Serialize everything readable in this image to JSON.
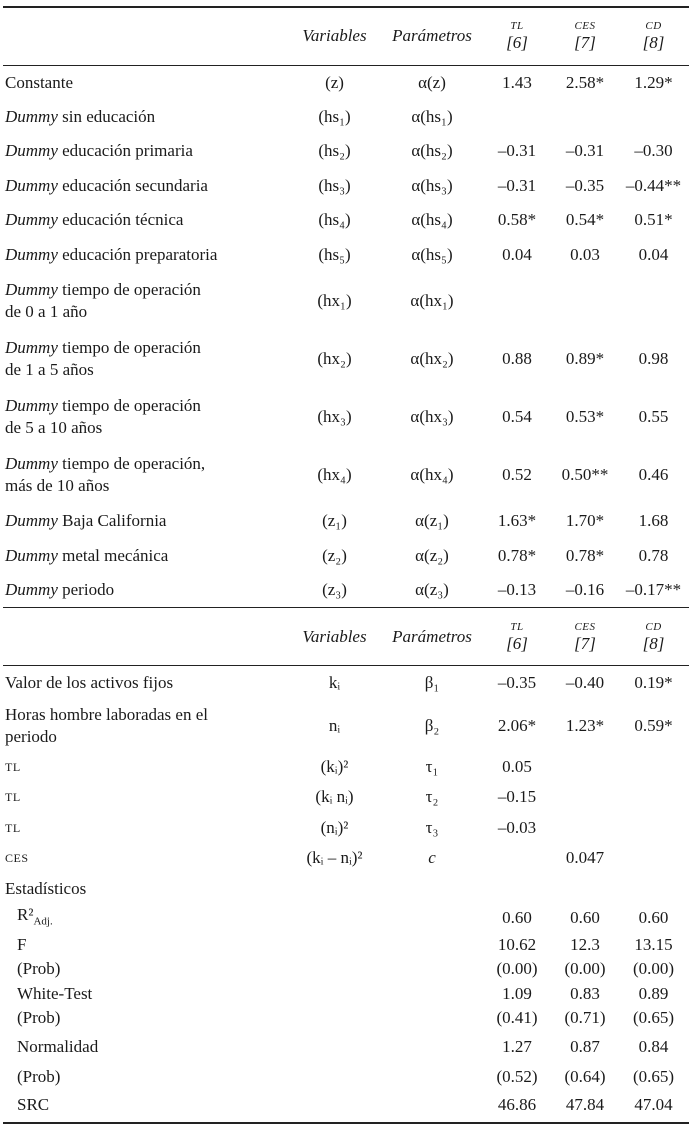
{
  "header": {
    "variables": "Variables",
    "parametros": "Parámetros",
    "models": [
      {
        "name": "TL",
        "num": "[6]"
      },
      {
        "name": "CES",
        "num": "[7]"
      },
      {
        "name": "CD",
        "num": "[8]"
      }
    ]
  },
  "section1": [
    {
      "it": "",
      "label": "Constante",
      "var": "(z)",
      "par": "α(z)",
      "tl": "1.43",
      "ces": "2.58*",
      "cd": "1.29*"
    },
    {
      "it": "Dummy",
      "label": " sin educación",
      "var": "(hs₁)",
      "par": "α(hs₁)",
      "tl": "",
      "ces": "",
      "cd": ""
    },
    {
      "it": "Dummy",
      "label": " educación primaria",
      "var": "(hs₂)",
      "par": "α(hs₂)",
      "tl": "–0.31",
      "ces": "–0.31",
      "cd": "–0.30"
    },
    {
      "it": "Dummy",
      "label": " educación secundaria",
      "var": "(hs₃)",
      "par": "α(hs₃)",
      "tl": "–0.31",
      "ces": "–0.35",
      "cd": "–0.44**"
    },
    {
      "it": "Dummy",
      "label": " educación técnica",
      "var": "(hs₄)",
      "par": "α(hs₄)",
      "tl": "0.58*",
      "ces": "0.54*",
      "cd": "0.51*"
    },
    {
      "it": "Dummy",
      "label": " educación preparatoria",
      "var": "(hs₅)",
      "par": "α(hs₅)",
      "tl": "0.04",
      "ces": "0.03",
      "cd": "0.04"
    },
    {
      "it": "Dummy",
      "label": " tiempo de operación\nde 0 a 1 año",
      "var": "(hx₁)",
      "par": "α(hx₁)",
      "tl": "",
      "ces": "",
      "cd": ""
    },
    {
      "it": "Dummy",
      "label": " tiempo de operación\nde 1 a 5 años",
      "var": "(hx₂)",
      "par": "α(hx₂)",
      "tl": "0.88",
      "ces": "0.89*",
      "cd": "0.98"
    },
    {
      "it": "Dummy",
      "label": " tiempo de operación\nde 5 a 10 años",
      "var": "(hx₃)",
      "par": "α(hx₃)",
      "tl": "0.54",
      "ces": "0.53*",
      "cd": "0.55"
    },
    {
      "it": "Dummy",
      "label": " tiempo  de operación,\nmás de 10 años",
      "var": "(hx₄)",
      "par": "α(hx₄)",
      "tl": "0.52",
      "ces": "0.50**",
      "cd": "0.46"
    },
    {
      "it": "Dummy",
      "label": " Baja California",
      "var": "(z₁)",
      "par": "α(z₁)",
      "tl": "1.63*",
      "ces": "1.70*",
      "cd": "1.68"
    },
    {
      "it": "Dummy",
      "label": " metal mecánica",
      "var": "(z₂)",
      "par": "α(z₂)",
      "tl": "0.78*",
      "ces": "0.78*",
      "cd": "0.78"
    },
    {
      "it": "Dummy",
      "label": " periodo",
      "var": "(z₃)",
      "par": "α(z₃)",
      "tl": "–0.13",
      "ces": "–0.16",
      "cd": "–0.17**"
    }
  ],
  "section2": [
    {
      "label": "Valor de los activos fijos",
      "var": "kᵢ",
      "par": "β₁",
      "tl": "–0.35",
      "ces": "–0.40",
      "cd": "0.19*"
    },
    {
      "label": "Horas hombre laboradas en el\nperiodo",
      "var": "nᵢ",
      "par": "β₂",
      "tl": "2.06*",
      "ces": "1.23*",
      "cd": "0.59*"
    },
    {
      "sc": true,
      "label": "TL",
      "var": "(kᵢ)²",
      "par": "τ₁",
      "tl": "0.05",
      "ces": "",
      "cd": ""
    },
    {
      "sc": true,
      "label": "TL",
      "var": "(kᵢ nᵢ)",
      "par": "τ₂",
      "tl": "–0.15",
      "ces": "",
      "cd": ""
    },
    {
      "sc": true,
      "label": "TL",
      "var": "(nᵢ)²",
      "par": "τ₃",
      "tl": "–0.03",
      "ces": "",
      "cd": ""
    },
    {
      "sc": true,
      "label": "CES",
      "var": "(kᵢ – nᵢ)²",
      "par": "c",
      "parItalic": true,
      "tl": "",
      "ces": "0.047",
      "cd": ""
    },
    {
      "label": "Estadísticos",
      "var": "",
      "par": "",
      "tl": "",
      "ces": "",
      "cd": ""
    }
  ],
  "stats": [
    {
      "label": "R²",
      "sub": "Adj.",
      "tl": "0.60",
      "ces": "0.60",
      "cd": "0.60"
    },
    {
      "label": "F",
      "tl": "10.62",
      "ces": "12.3",
      "cd": "13.15"
    },
    {
      "label": "(Prob)",
      "tl": "(0.00)",
      "ces": "(0.00)",
      "cd": "(0.00)"
    },
    {
      "label": "White-Test",
      "tl": "1.09",
      "ces": "0.83",
      "cd": "0.89"
    },
    {
      "label": "(Prob)",
      "tl": "(0.41)",
      "ces": "(0.71)",
      "cd": "(0.65)"
    },
    {
      "label": "Normalidad",
      "tl": "1.27",
      "ces": "0.87",
      "cd": "0.84",
      "gap": true
    },
    {
      "label": "(Prob)",
      "tl": "(0.52)",
      "ces": "(0.64)",
      "cd": "(0.65)"
    },
    {
      "label": "SRC",
      "tl": "46.86",
      "ces": "47.84",
      "cd": "47.04",
      "gap": true
    }
  ]
}
